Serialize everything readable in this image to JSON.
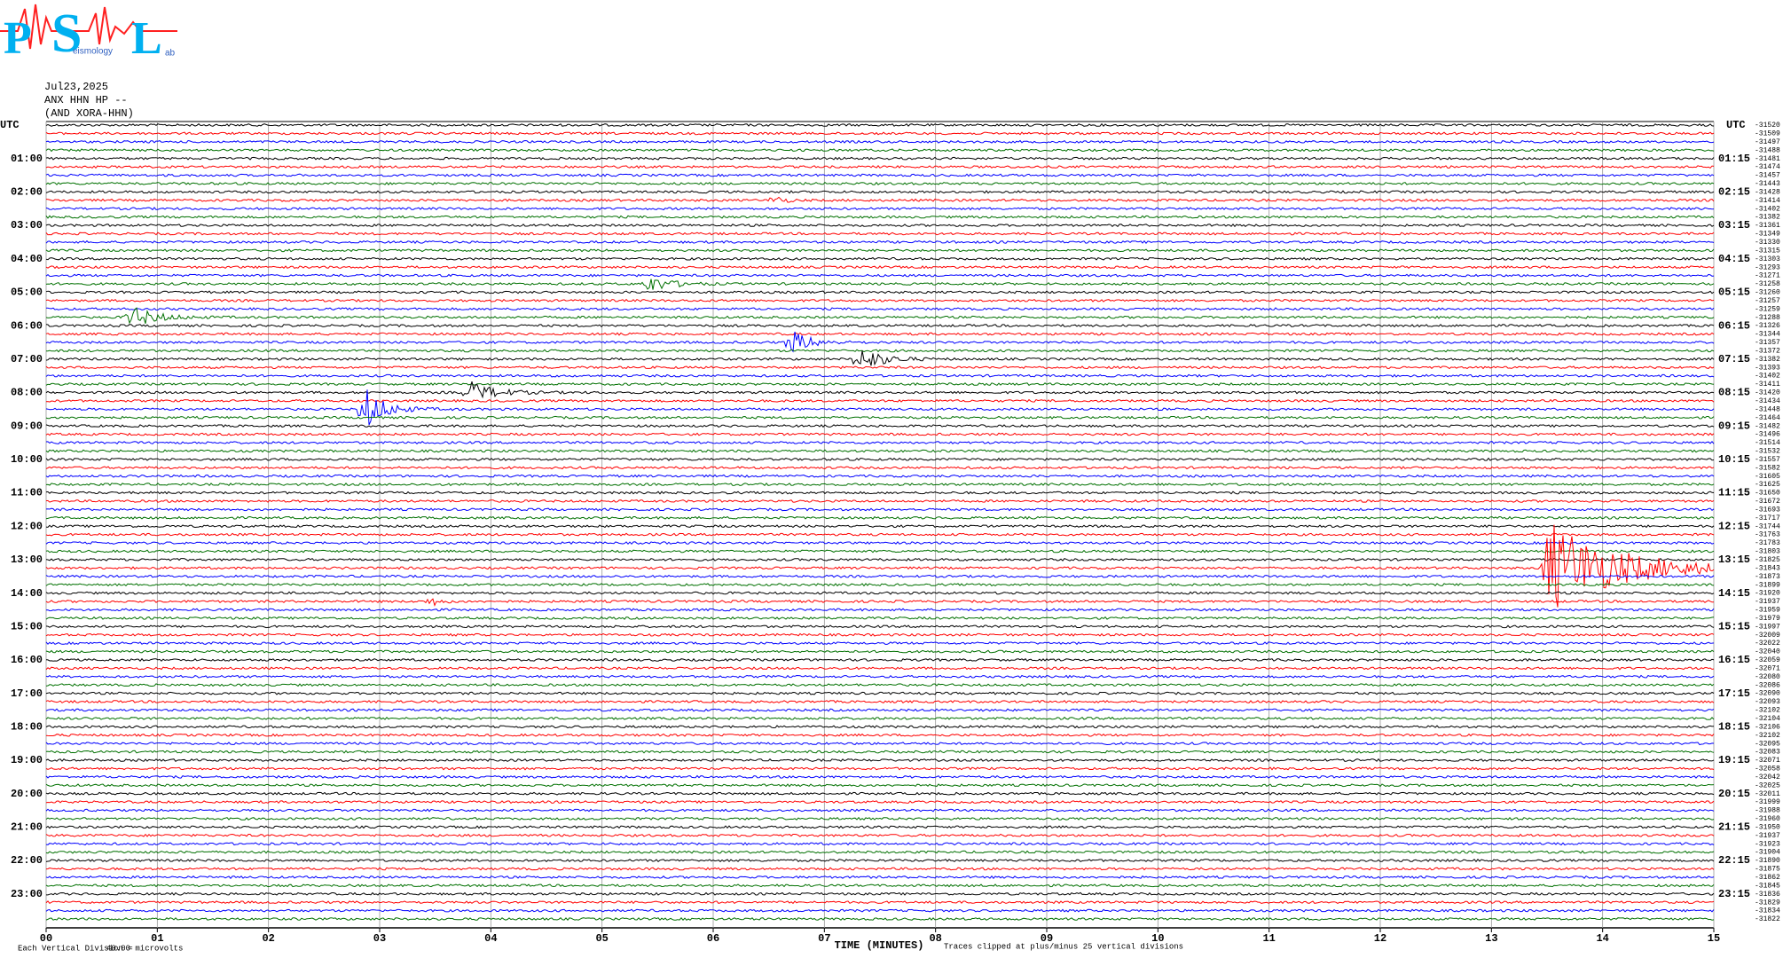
{
  "header": {
    "logo": {
      "letters": [
        "P",
        "S",
        "L"
      ],
      "words": [
        "eismology",
        "ab"
      ]
    },
    "date": "Jul23,2025",
    "station": "ANX HHN HP --",
    "network": "(AND XORA-HHN)"
  },
  "chart_data": {
    "type": "helicorder",
    "x_label": "TIME (MINUTES)",
    "time_axis_label": "UTC",
    "xlim": [
      0,
      15
    ],
    "xticks": [
      {
        "value": 0,
        "label": "00"
      },
      {
        "value": 1,
        "label": "01"
      },
      {
        "value": 2,
        "label": "02"
      },
      {
        "value": 3,
        "label": "03"
      },
      {
        "value": 4,
        "label": "04"
      },
      {
        "value": 5,
        "label": "05"
      },
      {
        "value": 6,
        "label": "06"
      },
      {
        "value": 7,
        "label": "07"
      },
      {
        "value": 8,
        "label": "08"
      },
      {
        "value": 9,
        "label": "09"
      },
      10,
      11,
      12,
      13,
      14,
      15
    ],
    "grid": true,
    "colors": [
      "#000000",
      "#ff0000",
      "#0000ff",
      "#007000"
    ],
    "left_labels": [
      "01:00",
      "02:00",
      "03:00",
      "04:00",
      "05:00",
      "06:00",
      "07:00",
      "08:00",
      "09:00",
      "10:00",
      "11:00",
      "12:00",
      "13:00",
      "14:00",
      "15:00",
      "16:00",
      "17:00",
      "18:00",
      "19:00",
      "20:00",
      "21:00",
      "22:00",
      "23:00"
    ],
    "right_labels": [
      "01:15",
      "02:15",
      "03:15",
      "04:15",
      "05:15",
      "06:15",
      "07:15",
      "08:15",
      "09:15",
      "10:15",
      "11:15",
      "12:15",
      "13:15",
      "14:15",
      "15:15",
      "16:15",
      "17:15",
      "18:15",
      "19:15",
      "20:15",
      "21:15",
      "22:15",
      "23:15"
    ],
    "offsets": [
      -31520,
      -31509,
      -31497,
      -31488,
      -31481,
      -31474,
      -31457,
      -31443,
      -31428,
      -31414,
      -31402,
      -31382,
      -31361,
      -31349,
      -31330,
      -31315,
      -31303,
      -31293,
      -31271,
      -31258,
      -31260,
      -31257,
      -31259,
      -31288,
      -31326,
      -31344,
      -31357,
      -31372,
      -31382,
      -31393,
      -31402,
      -31411,
      -31420,
      -31434,
      -31448,
      -31464,
      -31482,
      -31496,
      -31514,
      -31532,
      -31557,
      -31582,
      -31605,
      -31625,
      -31650,
      -31672,
      -31693,
      -31717,
      -31744,
      -31763,
      -31783,
      -31803,
      -31825,
      -31843,
      -31873,
      -31899,
      -31920,
      -31937,
      -31959,
      -31979,
      -31997,
      -32009,
      -32022,
      -32040,
      -32059,
      -32071,
      -32080,
      -32086,
      -32090,
      -32093,
      -32102,
      -32104,
      -32106,
      -32102,
      -32095,
      -32083,
      -32071,
      -32058,
      -32042,
      -32025,
      -32011,
      -31999,
      -31988,
      -31960,
      -31950,
      -31937,
      -31923,
      -31904,
      -31890,
      -31875,
      -31862,
      -31845,
      -31836,
      -31829,
      -31834,
      -31822
    ],
    "scale_note": "Each Vertical Division =",
    "scale_value": "40.00 microvolts",
    "clip_note": "Traces clipped at plus/minus 25 vertical divisions"
  }
}
